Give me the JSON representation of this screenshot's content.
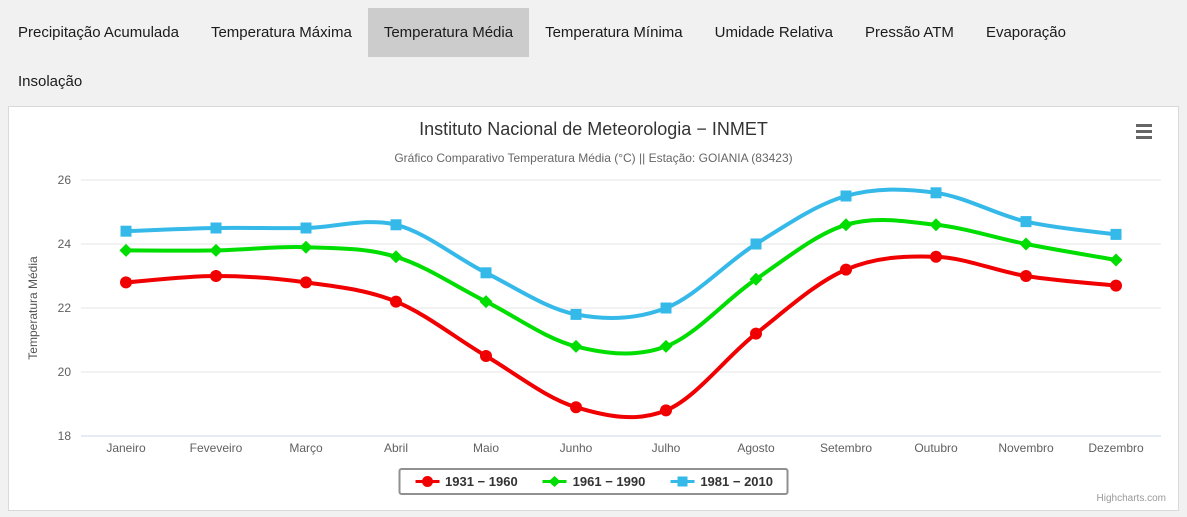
{
  "tabs": [
    {
      "label": "Precipitação Acumulada",
      "active": false
    },
    {
      "label": "Temperatura Máxima",
      "active": false
    },
    {
      "label": "Temperatura Média",
      "active": true
    },
    {
      "label": "Temperatura Mínima",
      "active": false
    },
    {
      "label": "Umidade Relativa",
      "active": false
    },
    {
      "label": "Pressão ATM",
      "active": false
    },
    {
      "label": "Evaporação",
      "active": false
    },
    {
      "label": "Insolação",
      "active": false
    }
  ],
  "chart": {
    "title": "Instituto Nacional de Meteorologia − INMET",
    "subtitle": "Gráfico Comparativo Temperatura Média (°C) || Estação: GOIANIA (83423)",
    "credits": "Highcharts.com",
    "menu_icon": "hamburger-icon"
  },
  "chart_data": {
    "type": "line",
    "categories": [
      "Janeiro",
      "Feveveiro",
      "Março",
      "Abril",
      "Maio",
      "Junho",
      "Julho",
      "Agosto",
      "Setembro",
      "Outubro",
      "Novembro",
      "Dezembro"
    ],
    "xlabel": "",
    "ylabel": "Temperatura Média",
    "ylim": [
      18,
      26
    ],
    "ytick_step": 2,
    "grid": true,
    "legend_position": "bottom",
    "colors": {
      "grid": "#e6e6e6",
      "axis_line": "#ccd6eb",
      "tick_text": "#606060",
      "axis_title_text": "#555555"
    },
    "series": [
      {
        "name": "1931 − 1960",
        "color": "#f00000",
        "marker": "circle",
        "values": [
          22.8,
          23.0,
          22.8,
          22.2,
          20.5,
          18.9,
          18.8,
          21.2,
          23.2,
          23.6,
          23.0,
          22.7
        ]
      },
      {
        "name": "1961 − 1990",
        "color": "#00dd00",
        "marker": "diamond",
        "values": [
          23.8,
          23.8,
          23.9,
          23.6,
          22.2,
          20.8,
          20.8,
          22.9,
          24.6,
          24.6,
          24.0,
          23.5
        ]
      },
      {
        "name": "1981 − 2010",
        "color": "#35b9e9",
        "marker": "square",
        "values": [
          24.4,
          24.5,
          24.5,
          24.6,
          23.1,
          21.8,
          22.0,
          24.0,
          25.5,
          25.6,
          24.7,
          24.3
        ]
      }
    ]
  }
}
